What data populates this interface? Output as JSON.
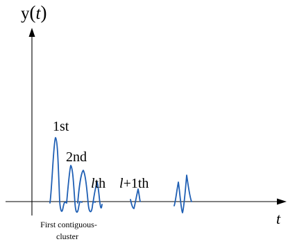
{
  "figure": {
    "y_axis_label_prefix": "y",
    "y_axis_label_open_paren": "(",
    "y_axis_label_var": "t",
    "y_axis_label_close_paren": ")",
    "x_axis_label": "t",
    "arrival_labels": {
      "first": "1st",
      "second": "2nd",
      "lth_var": "l",
      "lth_suffix": "th",
      "next_var": "l",
      "next_suffix": "+1th"
    },
    "cluster_caption_line1": "First contiguous-",
    "cluster_caption_line2": "cluster",
    "colors": {
      "axis": "#000000",
      "pulse": "#1f5fb4",
      "text": "#000000"
    }
  }
}
